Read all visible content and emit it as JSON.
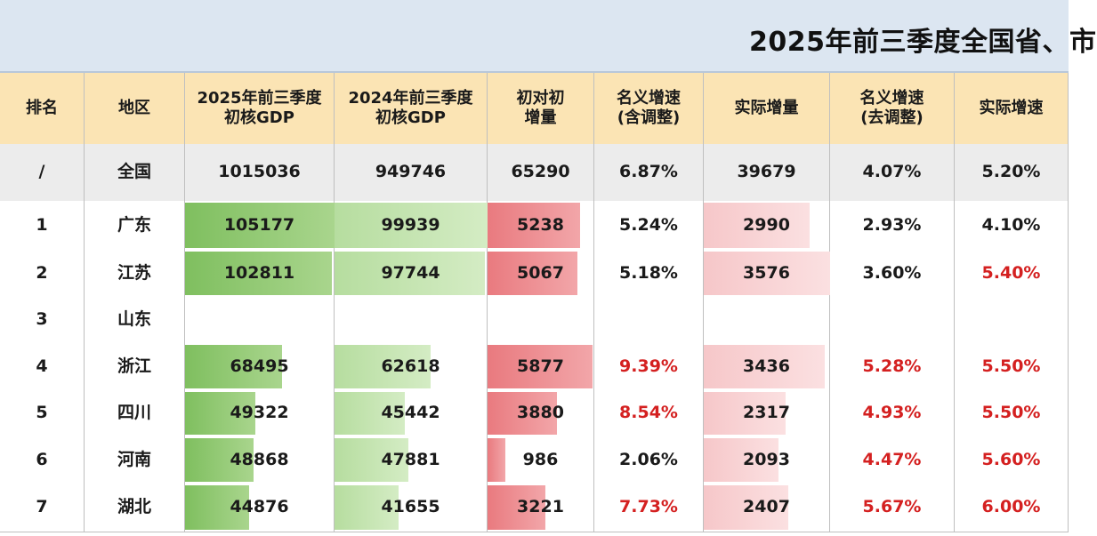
{
  "title": "2025年前三季度全国省、市",
  "headers": {
    "rank": "排名",
    "region": "地区",
    "gdp2025": [
      "2025年前三季度",
      "初核GDP"
    ],
    "gdp2024": [
      "2024年前三季度",
      "初核GDP"
    ],
    "increase": [
      "初对初",
      "增量"
    ],
    "nominal_adj": [
      "名义增速",
      "(含调整)"
    ],
    "real_increase": "实际增量",
    "nominal_noadj": [
      "名义增速",
      "(去调整)"
    ],
    "real_growth": "实际增速"
  },
  "national": {
    "rank": "/",
    "region": "全国",
    "gdp2025": "1015036",
    "gdp2024": "949746",
    "increase": "65290",
    "nominal_adj": "6.87%",
    "real_increase": "39679",
    "nominal_noadj": "4.07%",
    "real_growth": "5.20%"
  },
  "rows": [
    {
      "rank": "1",
      "region": "广东",
      "gdp2025": "105177",
      "gdp2024": "99939",
      "increase": "5238",
      "nominal_adj": "5.24%",
      "real_increase": "2990",
      "nominal_noadj": "2.93%",
      "real_growth": "4.10%",
      "gdp2025_fill": 1.0,
      "gdp2024_fill": 1.0,
      "increase_fill": 0.87,
      "real_increase_fill": 0.84,
      "red_nominal_adj": false,
      "red_nominal_noadj": false,
      "red_real_growth": false
    },
    {
      "rank": "2",
      "region": "江苏",
      "gdp2025": "102811",
      "gdp2024": "97744",
      "increase": "5067",
      "nominal_adj": "5.18%",
      "real_increase": "3576",
      "nominal_noadj": "3.60%",
      "real_growth": "5.40%",
      "gdp2025_fill": 0.98,
      "gdp2024_fill": 0.98,
      "increase_fill": 0.84,
      "real_increase_fill": 1.0,
      "red_nominal_adj": false,
      "red_nominal_noadj": false,
      "red_real_growth": true
    },
    {
      "rank": "3",
      "region": "山东",
      "gdp2025": "",
      "gdp2024": "",
      "increase": "",
      "nominal_adj": "",
      "real_increase": "",
      "nominal_noadj": "",
      "real_growth": "",
      "gdp2025_fill": 0,
      "gdp2024_fill": 0,
      "increase_fill": 0,
      "real_increase_fill": 0,
      "red_nominal_adj": false,
      "red_nominal_noadj": false,
      "red_real_growth": false
    },
    {
      "rank": "4",
      "region": "浙江",
      "gdp2025": "68495",
      "gdp2024": "62618",
      "increase": "5877",
      "nominal_adj": "9.39%",
      "real_increase": "3436",
      "nominal_noadj": "5.28%",
      "real_growth": "5.50%",
      "gdp2025_fill": 0.65,
      "gdp2024_fill": 0.63,
      "increase_fill": 0.98,
      "real_increase_fill": 0.96,
      "red_nominal_adj": true,
      "red_nominal_noadj": true,
      "red_real_growth": true
    },
    {
      "rank": "5",
      "region": "四川",
      "gdp2025": "49322",
      "gdp2024": "45442",
      "increase": "3880",
      "nominal_adj": "8.54%",
      "real_increase": "2317",
      "nominal_noadj": "4.93%",
      "real_growth": "5.50%",
      "gdp2025_fill": 0.47,
      "gdp2024_fill": 0.46,
      "increase_fill": 0.65,
      "real_increase_fill": 0.65,
      "red_nominal_adj": true,
      "red_nominal_noadj": true,
      "red_real_growth": true
    },
    {
      "rank": "6",
      "region": "河南",
      "gdp2025": "48868",
      "gdp2024": "47881",
      "increase": "986",
      "nominal_adj": "2.06%",
      "real_increase": "2093",
      "nominal_noadj": "4.47%",
      "real_growth": "5.60%",
      "gdp2025_fill": 0.46,
      "gdp2024_fill": 0.48,
      "increase_fill": 0.17,
      "real_increase_fill": 0.59,
      "red_nominal_adj": false,
      "red_nominal_noadj": true,
      "red_real_growth": true
    },
    {
      "rank": "7",
      "region": "湖北",
      "gdp2025": "44876",
      "gdp2024": "41655",
      "increase": "3221",
      "nominal_adj": "7.73%",
      "real_increase": "2407",
      "nominal_noadj": "5.67%",
      "real_growth": "6.00%",
      "gdp2025_fill": 0.43,
      "gdp2024_fill": 0.42,
      "increase_fill": 0.54,
      "real_increase_fill": 0.67,
      "red_nominal_adj": true,
      "red_nominal_noadj": true,
      "red_real_growth": true
    }
  ]
}
